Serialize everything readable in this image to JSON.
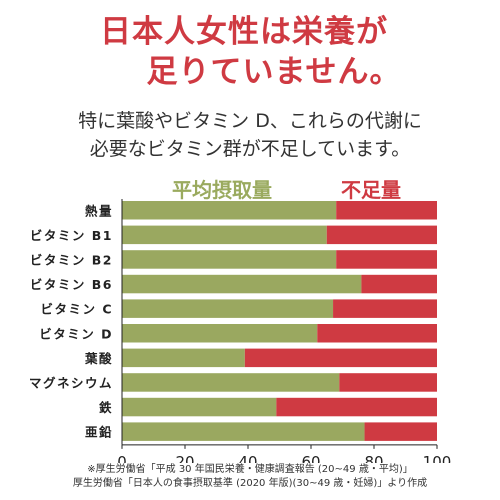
{
  "headline": {
    "line1": "日本人女性は栄養が",
    "line2": "足りていません。"
  },
  "subtitle": {
    "line1": "特に葉酸やビタミン D、これらの代謝に",
    "line2": "必要なビタミン群が不足しています。"
  },
  "colors": {
    "average": "#9aa860",
    "deficit": "#cf3a42",
    "headline": "#cf3a42"
  },
  "chart_data": {
    "type": "bar",
    "orientation": "horizontal",
    "stacked": true,
    "categories": [
      "熱量",
      "ビタミン B1",
      "ビタミン B2",
      "ビタミン B6",
      "ビタミン C",
      "ビタミン D",
      "葉酸",
      "マグネシウム",
      "鉄",
      "亜鉛"
    ],
    "series": [
      {
        "name": "平均摂取量",
        "values": [
          68,
          65,
          68,
          76,
          67,
          62,
          39,
          69,
          49,
          77
        ]
      },
      {
        "name": "不足量",
        "values": [
          32,
          35,
          32,
          24,
          33,
          38,
          61,
          31,
          51,
          23
        ]
      }
    ],
    "xlim": [
      0,
      100
    ],
    "xticks": [
      "0",
      "20",
      "40",
      "60",
      "80",
      "100"
    ],
    "grid": false,
    "legend_position": "top"
  },
  "footnote": {
    "line1": "※厚生労働省「平成 30 年国民栄養・健康調査報告 (20~49 歳・平均)」",
    "line2": "厚生労働省「日本人の食事摂取基準 (2020 年版)(30~49 歳・妊婦)」より作成"
  }
}
